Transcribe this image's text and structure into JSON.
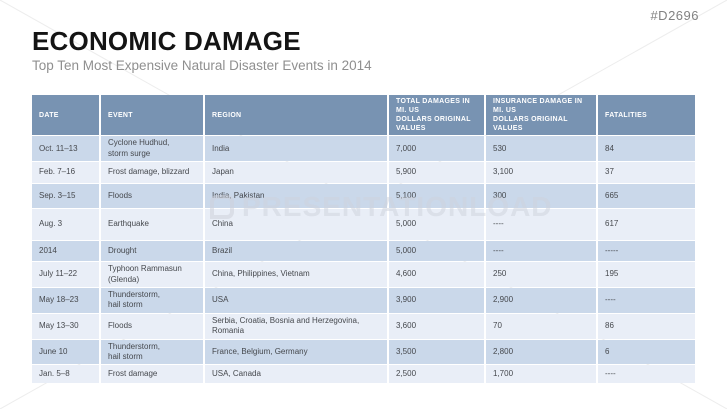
{
  "slide": {
    "code": "#D2696",
    "title": "ECONOMIC DAMAGE",
    "subtitle": "Top Ten Most Expensive Natural Disaster Events in 2014"
  },
  "watermark": {
    "text": "PRESENTATIONLOAD",
    "logo": "presentationload-logo"
  },
  "colors": {
    "header_bg": "#7893b2",
    "row_odd": "#cad8ea",
    "row_even": "#e9eef7",
    "header_text": "#ffffff",
    "cell_text": "#45484d",
    "subtitle_text": "#8f8f8f",
    "diagonal_line": "#ededed"
  },
  "table": {
    "columns": [
      {
        "key": "date",
        "label": "DATE"
      },
      {
        "key": "event",
        "label": "EVENT"
      },
      {
        "key": "region",
        "label": "REGION"
      },
      {
        "key": "total",
        "label": "TOTAL DAMAGES IN MI. US\nDOLLARS ORIGINAL VALUES"
      },
      {
        "key": "insurance",
        "label": "INSURANCE DAMAGE IN MI. US\nDOLLARS ORIGINAL VALUES"
      },
      {
        "key": "fatalities",
        "label": "FATALITIES"
      }
    ],
    "rows": [
      {
        "date": "Oct. 11–13",
        "event": "Cyclone Hudhud,\nstorm surge",
        "region": "India",
        "total": "7,000",
        "insurance": "530",
        "fatalities": "84"
      },
      {
        "date": "Feb. 7–16",
        "event": "Frost damage, blizzard",
        "region": "Japan",
        "total": "5,900",
        "insurance": "3,100",
        "fatalities": "37"
      },
      {
        "date": "Sep. 3–15",
        "event": "Floods",
        "region": "India, Pakistan",
        "total": "5,100",
        "insurance": "300",
        "fatalities": "665"
      },
      {
        "date": "Aug. 3",
        "event": "Earthquake",
        "region": "China",
        "total": "5,000",
        "insurance": "----",
        "fatalities": "617"
      },
      {
        "date": "2014",
        "event": "Drought",
        "region": "Brazil",
        "total": "5,000",
        "insurance": "----",
        "fatalities": "-----"
      },
      {
        "date": "July 11–22",
        "event": "Typhoon Rammasun (Glenda)",
        "region": "China, Philippines, Vietnam",
        "total": "4,600",
        "insurance": "250",
        "fatalities": "195"
      },
      {
        "date": "May 18–23",
        "event": "Thunderstorm,\nhail storm",
        "region": "USA",
        "total": "3,900",
        "insurance": "2,900",
        "fatalities": "----"
      },
      {
        "date": "May 13–30",
        "event": "Floods",
        "region": "Serbia, Croatia, Bosnia and Herzegovina, Romania",
        "total": "3,600",
        "insurance": "70",
        "fatalities": "86"
      },
      {
        "date": "June 10",
        "event": "Thunderstorm,\nhail storm",
        "region": "France, Belgium, Germany",
        "total": "3,500",
        "insurance": "2,800",
        "fatalities": "6"
      },
      {
        "date": "Jan. 5–8",
        "event": "Frost damage",
        "region": "USA, Canada",
        "total": "2,500",
        "insurance": "1,700",
        "fatalities": "----"
      }
    ]
  }
}
